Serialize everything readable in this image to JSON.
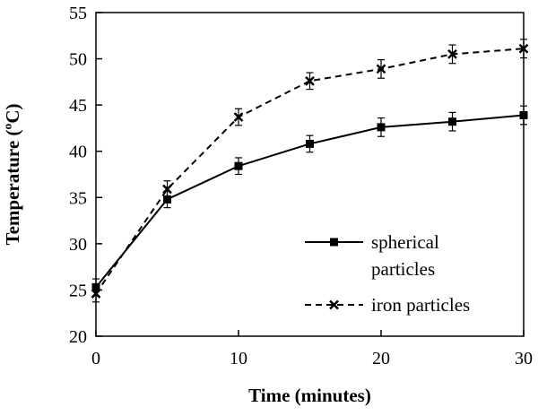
{
  "chart_data": {
    "type": "line",
    "title": "",
    "xlabel": "Time (minutes)",
    "ylabel": "Temperature (ºC)",
    "x": [
      0,
      5,
      10,
      15,
      20,
      25,
      30
    ],
    "xlim": [
      0,
      30
    ],
    "ylim": [
      20,
      55
    ],
    "xticks": [
      0,
      10,
      20,
      30
    ],
    "yticks": [
      20,
      25,
      30,
      35,
      40,
      45,
      50,
      55
    ],
    "grid": false,
    "legend_position": "bottom-right",
    "series": [
      {
        "name": "spherical particles",
        "name_lines": [
          "spherical",
          "particles"
        ],
        "values": [
          25.3,
          34.8,
          38.4,
          40.8,
          42.6,
          43.2,
          43.9
        ],
        "error": [
          0.9,
          0.9,
          0.9,
          0.9,
          1.0,
          1.0,
          1.0
        ],
        "line_style": "solid",
        "marker": "square",
        "color": "#000000"
      },
      {
        "name": "iron particles",
        "name_lines": [
          "iron particles"
        ],
        "values": [
          24.6,
          35.9,
          43.7,
          47.6,
          48.9,
          50.5,
          51.1
        ],
        "error": [
          0.9,
          0.9,
          0.9,
          0.9,
          1.0,
          1.0,
          1.0
        ],
        "line_style": "dashed",
        "marker": "x",
        "color": "#000000"
      }
    ]
  }
}
